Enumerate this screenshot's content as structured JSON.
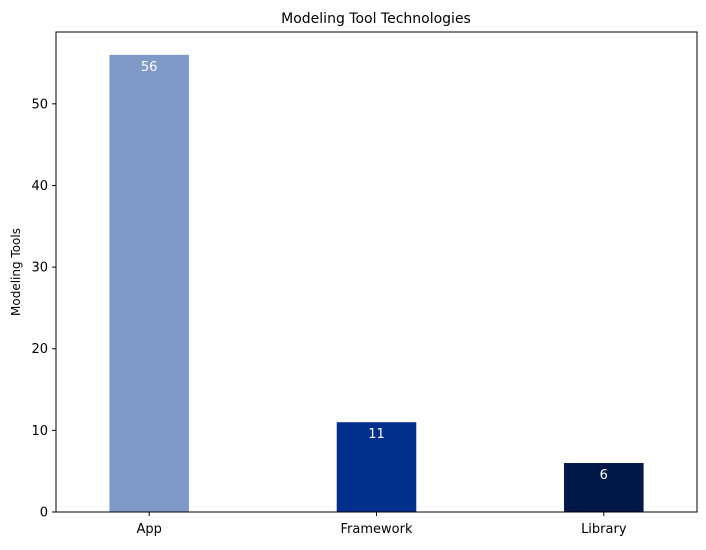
{
  "chart_data": {
    "type": "bar",
    "title": "Modeling Tool Technologies",
    "xlabel": "",
    "ylabel": "Modeling Tools",
    "categories": [
      "App",
      "Framework",
      "Library"
    ],
    "values": [
      56,
      11,
      6
    ],
    "data_labels": [
      "56",
      "11",
      "6"
    ],
    "bar_colors": [
      "#7f99c8",
      "#002e8c",
      "#001848"
    ],
    "data_label_color": "#ffffff",
    "ylim": [
      0,
      58.8
    ],
    "yticks": [
      0,
      10,
      20,
      30,
      40,
      50
    ],
    "grid": false,
    "legend": "none"
  }
}
